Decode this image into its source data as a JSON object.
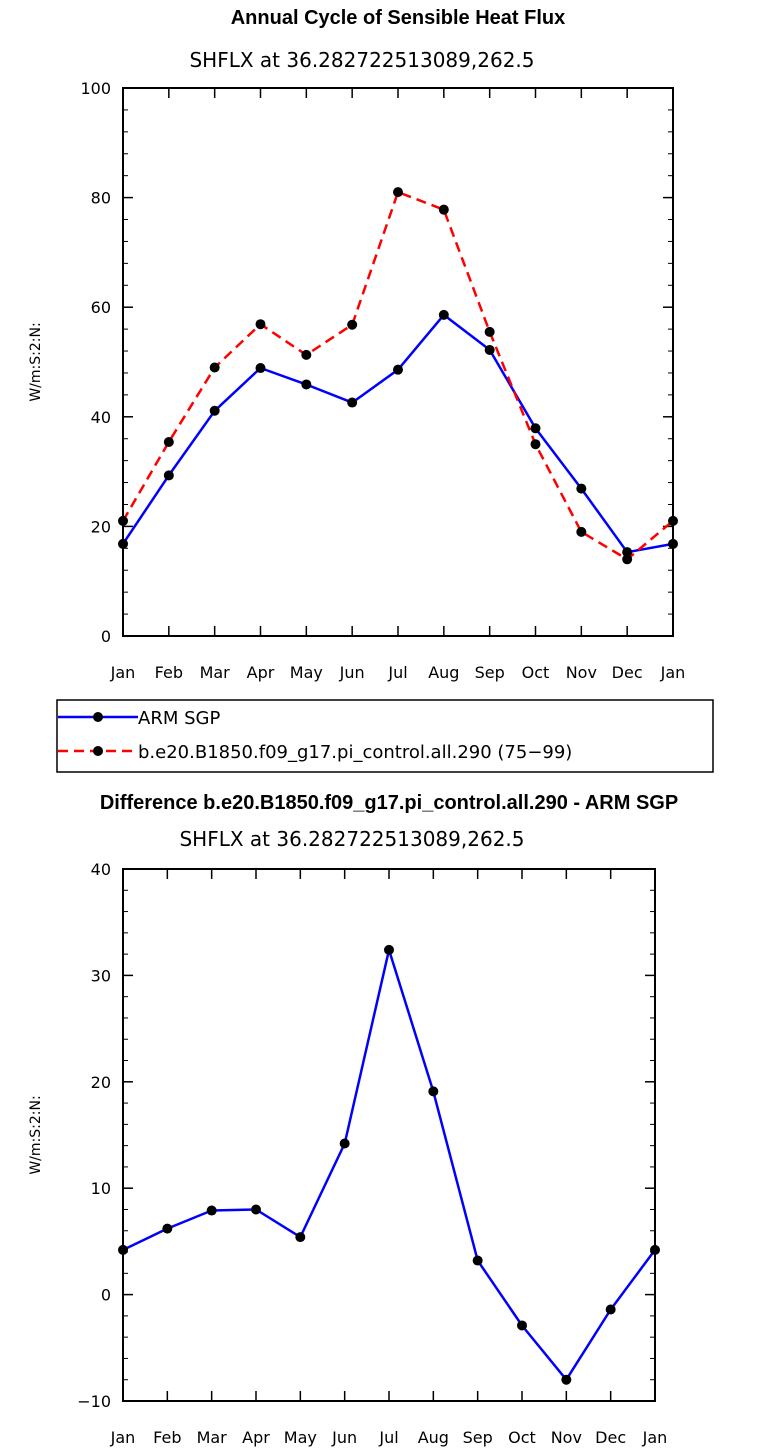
{
  "chart_data": [
    {
      "type": "line",
      "title": "Annual Cycle of Sensible Heat Flux",
      "subtitle": "SHFLX at 36.282722513089,262.5",
      "ylabel": "W/m:S:2:N:",
      "ylim": [
        0,
        100
      ],
      "yticks": [
        "0",
        "20",
        "40",
        "60",
        "80",
        "100"
      ],
      "categories": [
        "Jan",
        "Feb",
        "Mar",
        "Apr",
        "May",
        "Jun",
        "Jul",
        "Aug",
        "Sep",
        "Oct",
        "Nov",
        "Dec",
        "Jan"
      ],
      "legend_placement": "below",
      "series": [
        {
          "name": "ARM SGP",
          "color": "#0000ff",
          "dash": "solid",
          "values": [
            16.8,
            29.3,
            41.1,
            48.9,
            45.9,
            42.6,
            48.6,
            58.6,
            52.2,
            37.9,
            26.9,
            15.3,
            16.8
          ]
        },
        {
          "name": "b.e20.B1850.f09_g17.pi_control.all.290 (75−99)",
          "color": "#ff0000",
          "dash": "dashed",
          "values": [
            21.0,
            35.4,
            49.0,
            56.9,
            51.3,
            56.8,
            81.0,
            77.8,
            55.5,
            35.0,
            19.0,
            14.0,
            21.0
          ]
        }
      ]
    },
    {
      "type": "line",
      "title": "Difference b.e20.B1850.f09_g17.pi_control.all.290 - ARM SGP",
      "subtitle": "SHFLX at 36.282722513089,262.5",
      "ylabel": "W/m:S:2:N:",
      "ylim": [
        -10,
        40
      ],
      "yticks": [
        "−10",
        "0",
        "10",
        "20",
        "30",
        "40"
      ],
      "categories": [
        "Jan",
        "Feb",
        "Mar",
        "Apr",
        "May",
        "Jun",
        "Jul",
        "Aug",
        "Sep",
        "Oct",
        "Nov",
        "Dec",
        "Jan"
      ],
      "series": [
        {
          "color": "#0000ff",
          "dash": "solid",
          "values": [
            4.2,
            6.2,
            7.9,
            8.0,
            5.4,
            14.2,
            32.4,
            19.1,
            3.2,
            -2.9,
            -8.0,
            -1.4,
            4.2
          ]
        }
      ]
    }
  ]
}
